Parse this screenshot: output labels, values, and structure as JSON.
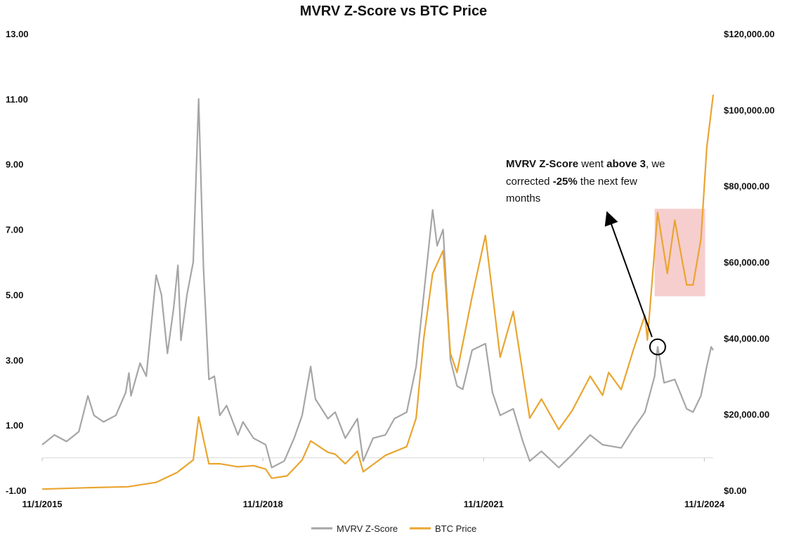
{
  "chart_data": {
    "type": "line",
    "title": "MVRV Z-Score vs BTC Price",
    "left_axis": {
      "ticks": [
        "13.00",
        "11.00",
        "9.00",
        "7.00",
        "5.00",
        "3.00",
        "1.00",
        "-1.00"
      ],
      "range": [
        -1,
        13
      ]
    },
    "right_axis": {
      "ticks": [
        "$120,000.00",
        "$100,000.00",
        "$80,000.00",
        "$60,000.00",
        "$40,000.00",
        "$20,000.00",
        "$0.00"
      ],
      "range": [
        0,
        120000
      ]
    },
    "x_axis": {
      "ticks": [
        "11/1/2015",
        "11/1/2018",
        "11/1/2021",
        "11/1/2024"
      ],
      "range": [
        "2015-11-01",
        "2024-12-15"
      ]
    },
    "series": [
      {
        "name": "MVRV Z-Score",
        "axis": "left",
        "color": "#a6a6a6",
        "points": [
          [
            "2015-11-01",
            0.4
          ],
          [
            "2016-01-01",
            0.7
          ],
          [
            "2016-03-01",
            0.5
          ],
          [
            "2016-05-01",
            0.8
          ],
          [
            "2016-06-15",
            1.9
          ],
          [
            "2016-07-15",
            1.3
          ],
          [
            "2016-09-01",
            1.1
          ],
          [
            "2016-11-01",
            1.3
          ],
          [
            "2016-12-20",
            2.0
          ],
          [
            "2017-01-05",
            2.6
          ],
          [
            "2017-01-15",
            1.9
          ],
          [
            "2017-03-01",
            2.9
          ],
          [
            "2017-04-01",
            2.5
          ],
          [
            "2017-05-20",
            5.6
          ],
          [
            "2017-06-15",
            5.0
          ],
          [
            "2017-07-15",
            3.2
          ],
          [
            "2017-08-15",
            4.6
          ],
          [
            "2017-09-05",
            5.9
          ],
          [
            "2017-09-20",
            3.6
          ],
          [
            "2017-10-20",
            5.0
          ],
          [
            "2017-11-20",
            6.0
          ],
          [
            "2017-12-17",
            11.0
          ],
          [
            "2018-01-10",
            5.8
          ],
          [
            "2018-02-06",
            2.4
          ],
          [
            "2018-03-05",
            2.5
          ],
          [
            "2018-04-01",
            1.3
          ],
          [
            "2018-05-05",
            1.6
          ],
          [
            "2018-06-30",
            0.7
          ],
          [
            "2018-07-25",
            1.1
          ],
          [
            "2018-09-15",
            0.6
          ],
          [
            "2018-11-15",
            0.4
          ],
          [
            "2018-12-15",
            -0.3
          ],
          [
            "2019-02-15",
            -0.1
          ],
          [
            "2019-04-05",
            0.6
          ],
          [
            "2019-05-15",
            1.3
          ],
          [
            "2019-06-26",
            2.8
          ],
          [
            "2019-07-20",
            1.8
          ],
          [
            "2019-09-20",
            1.2
          ],
          [
            "2019-10-26",
            1.4
          ],
          [
            "2019-12-15",
            0.6
          ],
          [
            "2020-02-13",
            1.2
          ],
          [
            "2020-03-13",
            -0.1
          ],
          [
            "2020-05-01",
            0.6
          ],
          [
            "2020-07-01",
            0.7
          ],
          [
            "2020-08-15",
            1.2
          ],
          [
            "2020-10-15",
            1.4
          ],
          [
            "2020-12-01",
            2.8
          ],
          [
            "2021-01-08",
            5.0
          ],
          [
            "2021-02-21",
            7.6
          ],
          [
            "2021-03-15",
            6.5
          ],
          [
            "2021-04-14",
            7.0
          ],
          [
            "2021-05-20",
            3.0
          ],
          [
            "2021-06-22",
            2.2
          ],
          [
            "2021-07-20",
            2.1
          ],
          [
            "2021-09-05",
            3.3
          ],
          [
            "2021-11-10",
            3.5
          ],
          [
            "2021-12-15",
            2.0
          ],
          [
            "2022-01-22",
            1.3
          ],
          [
            "2022-03-28",
            1.5
          ],
          [
            "2022-05-15",
            0.5
          ],
          [
            "2022-06-18",
            -0.1
          ],
          [
            "2022-08-15",
            0.2
          ],
          [
            "2022-11-09",
            -0.3
          ],
          [
            "2023-01-15",
            0.1
          ],
          [
            "2023-03-15",
            0.5
          ],
          [
            "2023-04-14",
            0.7
          ],
          [
            "2023-06-15",
            0.4
          ],
          [
            "2023-09-15",
            0.3
          ],
          [
            "2023-11-15",
            0.9
          ],
          [
            "2024-01-11",
            1.4
          ],
          [
            "2024-02-28",
            2.5
          ],
          [
            "2024-03-14",
            3.4
          ],
          [
            "2024-04-15",
            2.3
          ],
          [
            "2024-06-07",
            2.4
          ],
          [
            "2024-08-05",
            1.5
          ],
          [
            "2024-09-06",
            1.4
          ],
          [
            "2024-10-15",
            1.9
          ],
          [
            "2024-11-13",
            2.8
          ],
          [
            "2024-12-05",
            3.4
          ],
          [
            "2024-12-15",
            3.3
          ]
        ]
      },
      {
        "name": "BTC Price",
        "axis": "right",
        "color": "#e9a530",
        "points": [
          [
            "2015-11-01",
            330
          ],
          [
            "2016-06-15",
            700
          ],
          [
            "2016-12-31",
            960
          ],
          [
            "2017-05-20",
            2100
          ],
          [
            "2017-09-01",
            4700
          ],
          [
            "2017-11-20",
            8000
          ],
          [
            "2017-12-17",
            19300
          ],
          [
            "2018-02-06",
            7000
          ],
          [
            "2018-04-01",
            7000
          ],
          [
            "2018-06-30",
            6200
          ],
          [
            "2018-09-15",
            6500
          ],
          [
            "2018-11-15",
            5600
          ],
          [
            "2018-12-15",
            3200
          ],
          [
            "2019-03-01",
            3800
          ],
          [
            "2019-05-15",
            8000
          ],
          [
            "2019-06-26",
            13000
          ],
          [
            "2019-09-20",
            10000
          ],
          [
            "2019-10-26",
            9500
          ],
          [
            "2019-12-15",
            7000
          ],
          [
            "2020-02-13",
            10300
          ],
          [
            "2020-03-13",
            4900
          ],
          [
            "2020-07-01",
            9200
          ],
          [
            "2020-10-15",
            11500
          ],
          [
            "2020-12-01",
            19000
          ],
          [
            "2021-01-08",
            40000
          ],
          [
            "2021-02-21",
            57000
          ],
          [
            "2021-04-14",
            63000
          ],
          [
            "2021-05-20",
            36000
          ],
          [
            "2021-06-22",
            31000
          ],
          [
            "2021-09-05",
            51000
          ],
          [
            "2021-11-10",
            67000
          ],
          [
            "2022-01-22",
            35000
          ],
          [
            "2022-03-28",
            47000
          ],
          [
            "2022-06-18",
            19000
          ],
          [
            "2022-08-15",
            24000
          ],
          [
            "2022-11-09",
            16000
          ],
          [
            "2023-01-15",
            21000
          ],
          [
            "2023-04-14",
            30000
          ],
          [
            "2023-06-15",
            25000
          ],
          [
            "2023-07-15",
            31000
          ],
          [
            "2023-09-15",
            26500
          ],
          [
            "2023-11-15",
            37000
          ],
          [
            "2024-01-11",
            46000
          ],
          [
            "2024-01-23",
            39500
          ],
          [
            "2024-03-14",
            73000
          ],
          [
            "2024-05-01",
            57000
          ],
          [
            "2024-06-07",
            71000
          ],
          [
            "2024-08-05",
            54000
          ],
          [
            "2024-09-06",
            54000
          ],
          [
            "2024-10-15",
            66000
          ],
          [
            "2024-11-13",
            90000
          ],
          [
            "2024-12-15",
            104000
          ]
        ]
      }
    ],
    "legend": [
      "MVRV Z-Score",
      "BTC Price"
    ],
    "legend_position": "bottom",
    "annotation": {
      "parts": [
        {
          "text": "MVRV Z-Score",
          "bold": true
        },
        {
          "text": " went ",
          "bold": false
        },
        {
          "text": "above 3",
          "bold": true
        },
        {
          "text": ", we",
          "bold": false
        }
      ],
      "line2_parts": [
        {
          "text": "corrected ",
          "bold": false
        },
        {
          "text": "-25%",
          "bold": true
        },
        {
          "text": " the next few",
          "bold": false
        }
      ],
      "line3": "months",
      "circle_target": {
        "x": "2024-03-14",
        "z": 3.4
      },
      "highlight_range": {
        "x_start": "2024-02-28",
        "x_end": "2024-11-05",
        "price_low": 51000,
        "price_high": 74000
      }
    },
    "grid": false
  }
}
